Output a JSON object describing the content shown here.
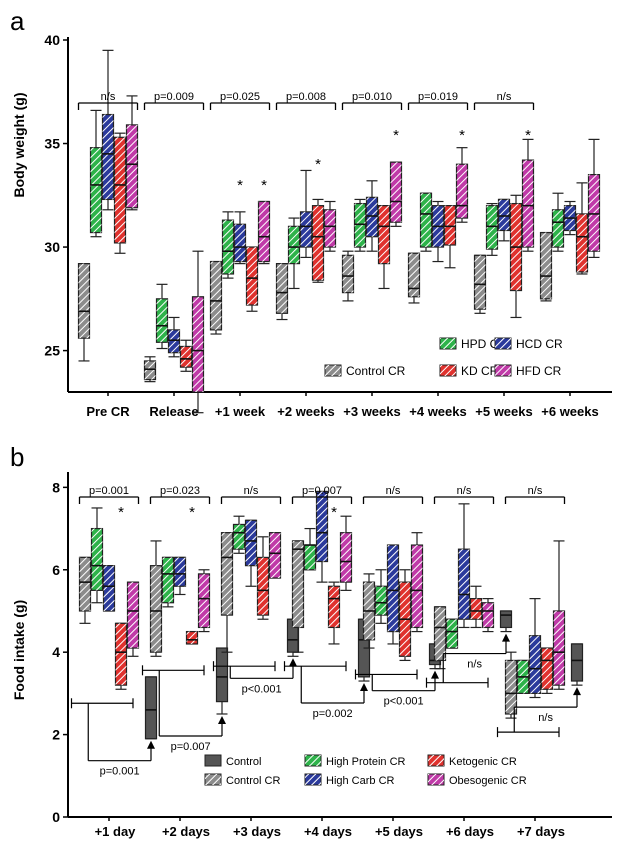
{
  "chart_data": [
    {
      "panel_label": "a",
      "type": "boxplot",
      "ylabel": "Body weight (g)",
      "ylim": [
        23,
        40
      ],
      "yticks": [
        25,
        30,
        35,
        40
      ],
      "categories": [
        "Pre CR",
        "Release",
        "+1 week",
        "+2 weeks",
        "+3 weeks",
        "+4 weeks",
        "+5 weeks",
        "+6 weeks"
      ],
      "legend_position": "bottom-right",
      "series": [
        {
          "name": "Control CR",
          "color": "#8c8c8c",
          "pattern": "hatch",
          "boxes": [
            {
              "min": 24.5,
              "q1": 25.6,
              "median": 26.9,
              "q3": 29.2,
              "max": 29.2
            },
            {
              "min": 23.5,
              "q1": 23.6,
              "median": 24.1,
              "q3": 24.5,
              "max": 24.7
            },
            {
              "min": 25.8,
              "q1": 26.0,
              "median": 27.4,
              "q3": 29.3,
              "max": 29.3
            },
            {
              "min": 26.5,
              "q1": 26.8,
              "median": 27.8,
              "q3": 29.2,
              "max": 29.2
            },
            {
              "min": 27.4,
              "q1": 27.8,
              "median": 28.6,
              "q3": 29.6,
              "max": 29.8
            },
            {
              "min": 27.3,
              "q1": 27.6,
              "median": 28.0,
              "q3": 29.7,
              "max": 29.7
            },
            {
              "min": 26.8,
              "q1": 27.0,
              "median": 28.2,
              "q3": 29.6,
              "max": 29.6
            },
            {
              "min": 27.4,
              "q1": 27.5,
              "median": 28.6,
              "q3": 30.7,
              "max": 30.7
            }
          ]
        },
        {
          "name": "HPD CR",
          "color": "#2eb34a",
          "pattern": "hatch",
          "boxes": [
            {
              "min": 30.5,
              "q1": 30.7,
              "median": 33.0,
              "q3": 34.8,
              "max": 36.6
            },
            {
              "min": 25.1,
              "q1": 25.4,
              "median": 26.2,
              "q3": 27.5,
              "max": 28.2
            },
            {
              "min": 28.5,
              "q1": 28.7,
              "median": 29.8,
              "q3": 31.3,
              "max": 31.7
            },
            {
              "min": 28.0,
              "q1": 29.2,
              "median": 30.0,
              "q3": 31.0,
              "max": 31.4
            },
            {
              "min": 29.8,
              "q1": 30.0,
              "median": 31.1,
              "q3": 32.1,
              "max": 32.3
            },
            {
              "min": 29.8,
              "q1": 30.0,
              "median": 31.6,
              "q3": 32.6,
              "max": 32.6
            },
            {
              "min": 29.6,
              "q1": 29.9,
              "median": 31.0,
              "q3": 32.0,
              "max": 32.1
            },
            {
              "min": 29.8,
              "q1": 30.0,
              "median": 31.2,
              "q3": 31.8,
              "max": 32.6
            }
          ]
        },
        {
          "name": "HCD CR",
          "color": "#2b3a9c",
          "pattern": "hatch",
          "boxes": [
            {
              "min": 31.8,
              "q1": 32.3,
              "median": 34.5,
              "q3": 36.4,
              "max": 39.5
            },
            {
              "min": 24.7,
              "q1": 24.9,
              "median": 25.5,
              "q3": 26.0,
              "max": 26.6
            },
            {
              "min": 29.2,
              "q1": 29.3,
              "median": 30.0,
              "q3": 31.1,
              "max": 31.7
            },
            {
              "min": 29.5,
              "q1": 30.0,
              "median": 31.0,
              "q3": 31.7,
              "max": 33.7
            },
            {
              "min": 29.8,
              "q1": 30.5,
              "median": 31.5,
              "q3": 32.4,
              "max": 33.2
            },
            {
              "min": 29.3,
              "q1": 30.0,
              "median": 31.0,
              "q3": 32.0,
              "max": 32.2
            },
            {
              "min": 30.3,
              "q1": 30.8,
              "median": 31.5,
              "q3": 32.3,
              "max": 32.3
            },
            {
              "min": 30.6,
              "q1": 30.8,
              "median": 31.4,
              "q3": 32.0,
              "max": 32.2
            }
          ]
        },
        {
          "name": "KD CR",
          "color": "#e0322e",
          "pattern": "hatch",
          "boxes": [
            {
              "min": 29.7,
              "q1": 30.2,
              "median": 33.0,
              "q3": 35.3,
              "max": 35.5
            },
            {
              "min": 24.0,
              "q1": 24.2,
              "median": 24.6,
              "q3": 25.2,
              "max": 25.5
            },
            {
              "min": 26.9,
              "q1": 27.2,
              "median": 28.5,
              "q3": 30.0,
              "max": 30.0
            },
            {
              "min": 28.3,
              "q1": 28.4,
              "median": 30.5,
              "q3": 32.0,
              "max": 32.3
            },
            {
              "min": 28.0,
              "q1": 29.2,
              "median": 31.0,
              "q3": 32.0,
              "max": 32.0
            },
            {
              "min": 29.0,
              "q1": 30.1,
              "median": 31.0,
              "q3": 32.0,
              "max": 32.0
            },
            {
              "min": 26.6,
              "q1": 27.9,
              "median": 30.0,
              "q3": 32.1,
              "max": 32.5
            },
            {
              "min": 28.7,
              "q1": 28.8,
              "median": 30.5,
              "q3": 31.6,
              "max": 33.1
            }
          ]
        },
        {
          "name": "HFD CR",
          "color": "#c03aa8",
          "pattern": "hatch",
          "boxes": [
            {
              "min": 31.8,
              "q1": 31.9,
              "median": 34.0,
              "q3": 35.9,
              "max": 37.3
            },
            {
              "min": 22.0,
              "q1": 23.0,
              "median": 25.0,
              "q3": 27.6,
              "max": 29.8
            },
            {
              "min": 29.2,
              "q1": 29.3,
              "median": 30.5,
              "q3": 32.2,
              "max": 32.2
            },
            {
              "min": 29.8,
              "q1": 30.0,
              "median": 31.0,
              "q3": 31.8,
              "max": 32.2
            },
            {
              "min": 31.0,
              "q1": 31.2,
              "median": 32.2,
              "q3": 34.1,
              "max": 34.1
            },
            {
              "min": 31.2,
              "q1": 31.4,
              "median": 32.0,
              "q3": 34.0,
              "max": 34.8
            },
            {
              "min": 29.8,
              "q1": 30.0,
              "median": 32.0,
              "q3": 34.2,
              "max": 35.2
            },
            {
              "min": 29.5,
              "q1": 29.8,
              "median": 31.6,
              "q3": 33.5,
              "max": 35.2
            }
          ]
        }
      ],
      "significance": [
        "n/s",
        "p=0.009",
        "p=0.025",
        "p=0.008",
        "p=0.010",
        "p=0.019",
        "n/s"
      ],
      "stars": [
        {
          "category": 2,
          "series": 2,
          "y": 33.0
        },
        {
          "category": 2,
          "series": 4,
          "y": 33.0
        },
        {
          "category": 3,
          "series": 3,
          "y": 34.0
        },
        {
          "category": 4,
          "series": 4,
          "y": 35.4
        },
        {
          "category": 5,
          "series": 4,
          "y": 35.4
        },
        {
          "category": 6,
          "series": 4,
          "y": 35.4
        }
      ],
      "legend_entries": [
        "HPD CR",
        "HCD CR",
        "Control CR",
        "KD CR",
        "HFD CR"
      ]
    },
    {
      "panel_label": "b",
      "type": "boxplot",
      "ylabel": "Food intake (g)",
      "ylim": [
        0,
        8.3
      ],
      "yticks": [
        0,
        2,
        4,
        6,
        8
      ],
      "categories": [
        "+1 day",
        "+2 days",
        "+3 days",
        "+4 days",
        "+5 days",
        "+6 days",
        "+7 days"
      ],
      "legend_position": "bottom-right",
      "series": [
        {
          "name": "Control CR",
          "color": "#8c8c8c",
          "pattern": "hatch",
          "boxes": [
            {
              "min": 4.7,
              "q1": 5.0,
              "median": 5.7,
              "q3": 6.3,
              "max": 6.3
            },
            {
              "min": 3.9,
              "q1": 4.0,
              "median": 5.0,
              "q3": 6.1,
              "max": 6.7
            },
            {
              "min": 4.0,
              "q1": 4.9,
              "median": 6.3,
              "q3": 6.9,
              "max": 6.9
            },
            {
              "min": 4.0,
              "q1": 4.6,
              "median": 6.5,
              "q3": 6.7,
              "max": 6.7
            },
            {
              "min": 4.1,
              "q1": 4.3,
              "median": 5.0,
              "q3": 5.7,
              "max": 5.9
            },
            {
              "min": 3.6,
              "q1": 3.8,
              "median": 4.6,
              "q3": 5.1,
              "max": 5.1
            },
            {
              "min": 2.4,
              "q1": 2.5,
              "median": 3.0,
              "q3": 3.8,
              "max": 4.0
            }
          ]
        },
        {
          "name": "High Protein CR",
          "color": "#2eb34a",
          "pattern": "hatch",
          "boxes": [
            {
              "min": 5.2,
              "q1": 5.5,
              "median": 6.1,
              "q3": 7.0,
              "max": 7.5
            },
            {
              "min": 5.1,
              "q1": 5.2,
              "median": 5.9,
              "q3": 6.3,
              "max": 6.3
            },
            {
              "min": 6.4,
              "q1": 6.5,
              "median": 6.9,
              "q3": 7.1,
              "max": 7.3
            },
            {
              "min": 6.0,
              "q1": 6.0,
              "median": 6.6,
              "q3": 6.6,
              "max": 7.0
            },
            {
              "min": 4.7,
              "q1": 4.9,
              "median": 5.2,
              "q3": 5.6,
              "max": 6.0
            },
            {
              "min": 4.1,
              "q1": 4.1,
              "median": 4.5,
              "q3": 4.8,
              "max": 4.8
            },
            {
              "min": 3.0,
              "q1": 3.0,
              "median": 3.4,
              "q3": 3.8,
              "max": 3.8
            }
          ]
        },
        {
          "name": "High Carb CR",
          "color": "#2b3a9c",
          "pattern": "hatch",
          "boxes": [
            {
              "min": 5.0,
              "q1": 5.0,
              "median": 5.6,
              "q3": 6.1,
              "max": 6.1
            },
            {
              "min": 5.4,
              "q1": 5.6,
              "median": 5.9,
              "q3": 6.3,
              "max": 6.3
            },
            {
              "min": 5.6,
              "q1": 6.1,
              "median": 6.7,
              "q3": 7.2,
              "max": 7.2
            },
            {
              "min": 5.7,
              "q1": 6.2,
              "median": 6.9,
              "q3": 7.9,
              "max": 7.9
            },
            {
              "min": 4.2,
              "q1": 4.5,
              "median": 5.5,
              "q3": 6.6,
              "max": 6.6
            },
            {
              "min": 4.6,
              "q1": 4.8,
              "median": 5.4,
              "q3": 6.5,
              "max": 7.6
            },
            {
              "min": 2.9,
              "q1": 3.0,
              "median": 3.6,
              "q3": 4.4,
              "max": 5.3
            }
          ]
        },
        {
          "name": "Ketogenic CR",
          "color": "#e0322e",
          "pattern": "hatch",
          "boxes": [
            {
              "min": 3.1,
              "q1": 3.2,
              "median": 4.0,
              "q3": 4.7,
              "max": 4.7
            },
            {
              "min": 4.2,
              "q1": 4.2,
              "median": 4.3,
              "q3": 4.5,
              "max": 4.5
            },
            {
              "min": 4.8,
              "q1": 4.9,
              "median": 5.5,
              "q3": 6.3,
              "max": 6.8
            },
            {
              "min": 4.2,
              "q1": 4.6,
              "median": 5.3,
              "q3": 5.6,
              "max": 5.7
            },
            {
              "min": 3.8,
              "q1": 3.9,
              "median": 4.8,
              "q3": 5.7,
              "max": 6.0
            },
            {
              "min": 4.6,
              "q1": 4.8,
              "median": 5.0,
              "q3": 5.3,
              "max": 5.6
            },
            {
              "min": 3.0,
              "q1": 3.1,
              "median": 3.8,
              "q3": 4.1,
              "max": 4.1
            }
          ]
        },
        {
          "name": "Obesogenic CR",
          "color": "#c03aa8",
          "pattern": "hatch",
          "boxes": [
            {
              "min": 3.9,
              "q1": 4.1,
              "median": 5.0,
              "q3": 5.7,
              "max": 5.7
            },
            {
              "min": 4.5,
              "q1": 4.6,
              "median": 5.3,
              "q3": 5.9,
              "max": 6.0
            },
            {
              "min": 5.8,
              "q1": 5.8,
              "median": 6.4,
              "q3": 6.9,
              "max": 6.9
            },
            {
              "min": 5.5,
              "q1": 5.7,
              "median": 6.2,
              "q3": 6.9,
              "max": 7.3
            },
            {
              "min": 4.5,
              "q1": 4.6,
              "median": 5.5,
              "q3": 6.6,
              "max": 6.9
            },
            {
              "min": 4.5,
              "q1": 4.6,
              "median": 5.0,
              "q3": 5.2,
              "max": 5.3
            },
            {
              "min": 3.1,
              "q1": 3.2,
              "median": 4.0,
              "q3": 5.0,
              "max": 6.7
            }
          ]
        },
        {
          "name": "Control",
          "color": "#555555",
          "pattern": "solid",
          "boxes": [
            {
              "min": 1.9,
              "q1": 1.9,
              "median": 2.6,
              "q3": 3.4,
              "max": 3.4
            },
            {
              "min": 2.5,
              "q1": 2.8,
              "median": 3.4,
              "q3": 4.1,
              "max": 4.1
            },
            {
              "min": 3.9,
              "q1": 4.0,
              "median": 4.3,
              "q3": 4.8,
              "max": 4.8
            },
            {
              "min": 3.3,
              "q1": 3.4,
              "median": 4.3,
              "q3": 4.8,
              "max": 4.8
            },
            {
              "min": 3.6,
              "q1": 3.7,
              "median": 3.8,
              "q3": 4.2,
              "max": 4.2
            },
            {
              "min": 4.5,
              "q1": 4.6,
              "median": 4.9,
              "q3": 5.0,
              "max": 5.0
            },
            {
              "min": 3.2,
              "q1": 3.3,
              "median": 3.8,
              "q3": 4.2,
              "max": 4.2
            }
          ]
        }
      ],
      "significance": [
        "p=0.001",
        "p=0.023",
        "n/s",
        "p=0.007",
        "n/s",
        "n/s",
        "n/s"
      ],
      "control_comparisons": [
        "p=0.001",
        "p=0.007",
        "p<0.001",
        "p=0.002",
        "p<0.001",
        "n/s",
        "n/s"
      ],
      "stars": [
        {
          "category": 0,
          "series": 3,
          "y": 7.4
        },
        {
          "category": 1,
          "series": 3,
          "y": 7.4
        },
        {
          "category": 3,
          "series": 3,
          "y": 7.4
        }
      ],
      "legend_entries": [
        "Control",
        "High Protein CR",
        "Ketogenic CR",
        "Control CR",
        "High Carb CR",
        "Obesogenic CR"
      ]
    }
  ]
}
